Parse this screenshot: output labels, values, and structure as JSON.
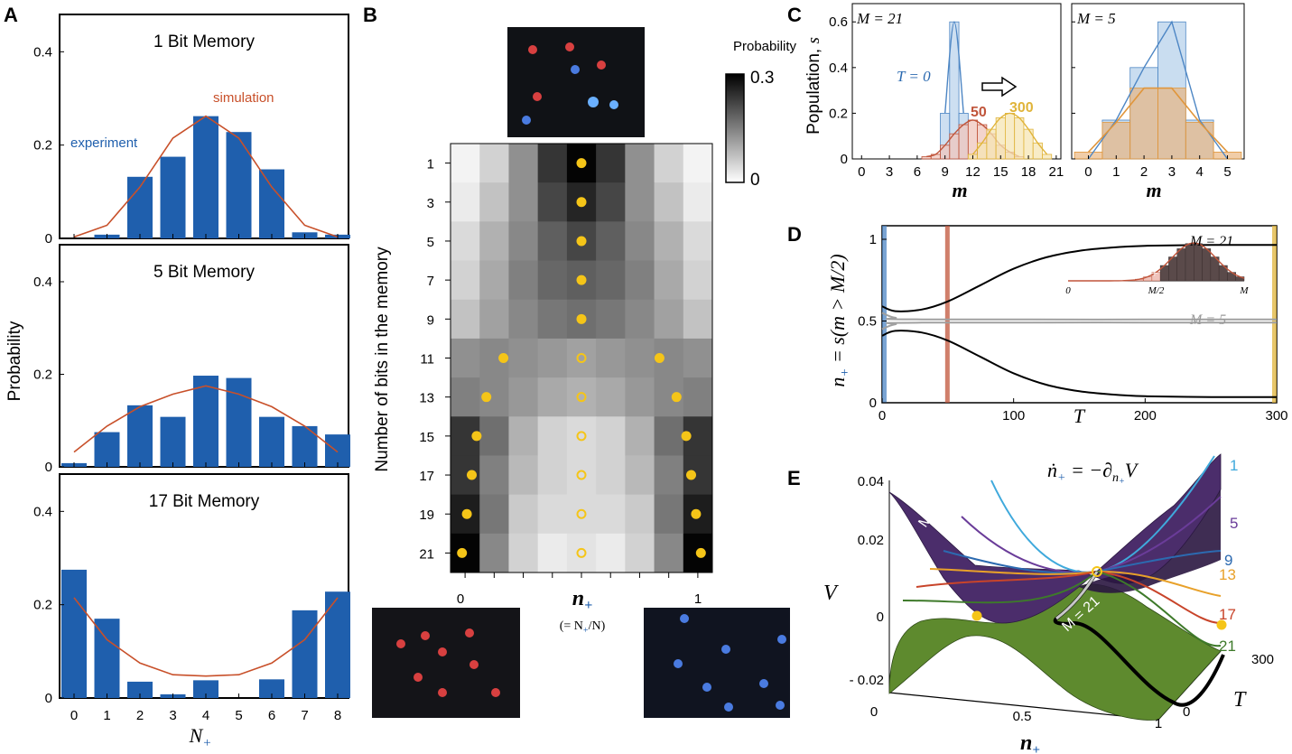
{
  "panel_labels": {
    "a": "A",
    "b": "B",
    "c": "C",
    "d": "D",
    "e": "E"
  },
  "colors": {
    "bar_blue": "#1f5fad",
    "sim_red": "#c8502a",
    "t0_blue": "#4d86c4",
    "t50_red": "#c0543a",
    "t300_yellow": "#e0b43a",
    "m5_orange": "#e0963c",
    "dot_yellow": "#f5c518",
    "surf_purple": "#4b2d6b",
    "surf_green": "#5e8a2e"
  },
  "panel_a": {
    "ylabel": "Probability",
    "xlabel": "N",
    "xlabel_sub": "+",
    "experiment_label": "experiment",
    "simulation_label": "simulation",
    "x_ticks": [
      "0",
      "1",
      "2",
      "3",
      "4",
      "5",
      "6",
      "7",
      "8"
    ],
    "y_ticks": [
      "0",
      "0.2",
      "0.4"
    ],
    "chart_data": [
      {
        "type": "bar",
        "title": "1 Bit Memory",
        "categories": [
          0,
          1,
          2,
          3,
          4,
          5,
          6,
          7,
          8
        ],
        "values": [
          0.0,
          0.008,
          0.132,
          0.175,
          0.262,
          0.228,
          0.148,
          0.013,
          0.008
        ],
        "simulation": [
          0.003,
          0.028,
          0.11,
          0.215,
          0.262,
          0.215,
          0.11,
          0.028,
          0.003
        ],
        "ylim": [
          0,
          0.48
        ]
      },
      {
        "type": "bar",
        "title": "5 Bit Memory",
        "categories": [
          0,
          1,
          2,
          3,
          4,
          5,
          6,
          7,
          8
        ],
        "values": [
          0.008,
          0.075,
          0.133,
          0.108,
          0.197,
          0.192,
          0.108,
          0.088,
          0.07
        ],
        "simulation": [
          0.032,
          0.088,
          0.13,
          0.157,
          0.175,
          0.157,
          0.13,
          0.088,
          0.032
        ],
        "ylim": [
          0,
          0.48
        ]
      },
      {
        "type": "bar",
        "title": "17 Bit Memory",
        "categories": [
          0,
          1,
          2,
          3,
          4,
          5,
          6,
          7,
          8
        ],
        "values": [
          0.275,
          0.17,
          0.035,
          0.008,
          0.038,
          0.0,
          0.04,
          0.188,
          0.228
        ],
        "simulation": [
          0.215,
          0.125,
          0.075,
          0.05,
          0.047,
          0.05,
          0.075,
          0.125,
          0.215
        ],
        "ylim": [
          0,
          0.48
        ]
      }
    ]
  },
  "panel_b": {
    "ylabel": "Number of bits in the memory",
    "colorbar_title": "Probability",
    "colorbar_max": "0.3",
    "colorbar_min": "0",
    "x_label_left": "0",
    "x_label_right": "1",
    "x_label_math": "n",
    "x_label_sub": "+",
    "x_label_note": "(= N",
    "x_label_note_sub": "+",
    "x_label_note_end": "/N)",
    "chart_data": {
      "type": "heatmap",
      "rows": [
        1,
        3,
        5,
        7,
        9,
        11,
        13,
        15,
        17,
        19,
        21
      ],
      "values": [
        [
          0.01,
          0.05,
          0.13,
          0.24,
          0.3,
          0.24,
          0.13,
          0.05,
          0.01
        ],
        [
          0.02,
          0.07,
          0.13,
          0.22,
          0.26,
          0.22,
          0.13,
          0.07,
          0.02
        ],
        [
          0.04,
          0.09,
          0.14,
          0.19,
          0.22,
          0.19,
          0.14,
          0.09,
          0.04
        ],
        [
          0.05,
          0.1,
          0.15,
          0.18,
          0.19,
          0.18,
          0.15,
          0.1,
          0.05
        ],
        [
          0.07,
          0.11,
          0.14,
          0.16,
          0.17,
          0.16,
          0.14,
          0.11,
          0.07
        ],
        [
          0.13,
          0.14,
          0.13,
          0.12,
          0.11,
          0.12,
          0.13,
          0.14,
          0.13
        ],
        [
          0.15,
          0.14,
          0.12,
          0.1,
          0.09,
          0.1,
          0.12,
          0.14,
          0.15
        ],
        [
          0.24,
          0.17,
          0.09,
          0.05,
          0.04,
          0.05,
          0.09,
          0.17,
          0.24
        ],
        [
          0.24,
          0.15,
          0.08,
          0.05,
          0.04,
          0.05,
          0.08,
          0.15,
          0.24
        ],
        [
          0.27,
          0.16,
          0.06,
          0.04,
          0.04,
          0.04,
          0.06,
          0.16,
          0.27
        ],
        [
          0.3,
          0.14,
          0.05,
          0.02,
          0.03,
          0.02,
          0.05,
          0.14,
          0.3
        ]
      ],
      "dots": [
        {
          "row": 1,
          "x": [
            0.5
          ],
          "filled": true
        },
        {
          "row": 3,
          "x": [
            0.5
          ],
          "filled": true
        },
        {
          "row": 5,
          "x": [
            0.5
          ],
          "filled": true
        },
        {
          "row": 7,
          "x": [
            0.5
          ],
          "filled": true
        },
        {
          "row": 9,
          "x": [
            0.5
          ],
          "filled": true
        },
        {
          "row": 11,
          "x": [
            0.18,
            0.82
          ],
          "filled": true
        },
        {
          "row": 11,
          "x": [
            0.5
          ],
          "filled": false
        },
        {
          "row": 13,
          "x": [
            0.11,
            0.89
          ],
          "filled": true
        },
        {
          "row": 13,
          "x": [
            0.5
          ],
          "filled": false
        },
        {
          "row": 15,
          "x": [
            0.07,
            0.93
          ],
          "filled": true
        },
        {
          "row": 15,
          "x": [
            0.5
          ],
          "filled": false
        },
        {
          "row": 17,
          "x": [
            0.05,
            0.95
          ],
          "filled": true
        },
        {
          "row": 17,
          "x": [
            0.5
          ],
          "filled": false
        },
        {
          "row": 19,
          "x": [
            0.03,
            0.97
          ],
          "filled": true
        },
        {
          "row": 19,
          "x": [
            0.5
          ],
          "filled": false
        },
        {
          "row": 21,
          "x": [
            0.01,
            0.99
          ],
          "filled": true
        },
        {
          "row": 21,
          "x": [
            0.5
          ],
          "filled": false
        }
      ],
      "colorbar_range": [
        0,
        0.3
      ]
    }
  },
  "panel_c": {
    "ylabel": "Population, ",
    "ylabel_math": "s",
    "xlabel": "m",
    "left_label": "M = 21",
    "right_label": "M = 5",
    "t0_label": "T = 0",
    "t50_label": "50",
    "t300_label": "300",
    "y_ticks": [
      "0",
      "0.2",
      "0.4",
      "0.6"
    ],
    "left_x_ticks": [
      "0",
      "3",
      "6",
      "9",
      "12",
      "15",
      "18",
      "21"
    ],
    "right_x_ticks": [
      "0",
      "1",
      "2",
      "3",
      "4",
      "5"
    ],
    "chart_data": [
      {
        "type": "bar",
        "title": "M = 21",
        "xlim": [
          -1,
          21.5
        ],
        "ylim": [
          0,
          0.68
        ],
        "series": [
          {
            "name": "T = 0",
            "x": [
              9,
              10,
              11
            ],
            "values": [
              0.2,
              0.6,
              0.2
            ]
          },
          {
            "name": "50",
            "x": [
              7,
              8,
              9,
              10,
              11,
              12,
              13,
              14,
              15,
              16,
              17
            ],
            "values": [
              0.01,
              0.02,
              0.06,
              0.11,
              0.15,
              0.17,
              0.15,
              0.11,
              0.06,
              0.03,
              0.01
            ]
          },
          {
            "name": "300",
            "x": [
              12,
              13,
              14,
              15,
              16,
              17,
              18,
              19,
              20
            ],
            "values": [
              0.02,
              0.07,
              0.13,
              0.18,
              0.2,
              0.18,
              0.13,
              0.07,
              0.02
            ]
          }
        ]
      },
      {
        "type": "bar",
        "title": "M = 5",
        "xlim": [
          -0.6,
          5.6
        ],
        "ylim": [
          0,
          0.68
        ],
        "series": [
          {
            "name": "T = 0",
            "x": [
              0,
              1,
              2,
              3,
              4,
              5
            ],
            "values": [
              0.0,
              0.17,
              0.4,
              0.6,
              0.17,
              0.0
            ]
          },
          {
            "name": "T = 300",
            "x": [
              0,
              1,
              2,
              3,
              4,
              5
            ],
            "values": [
              0.03,
              0.16,
              0.31,
              0.31,
              0.16,
              0.03
            ]
          }
        ]
      }
    ]
  },
  "panel_d": {
    "ylabel": "n",
    "ylabel_sub": "+",
    "ylabel_rest": " = s(m > M/2)",
    "xlabel": "T",
    "label_m21": "M = 21",
    "label_m5": "M = 5",
    "inset_label": "n",
    "inset_label_sub": "+",
    "inset_ticks": [
      "0",
      "M/2",
      "M"
    ],
    "x_ticks": [
      "0",
      "100",
      "200",
      "300"
    ],
    "y_ticks": [
      "0",
      "0.5",
      "1"
    ],
    "chart_data": {
      "type": "line",
      "xlim": [
        0,
        300
      ],
      "ylim": [
        0,
        1
      ],
      "series": [
        {
          "name": "M = 21 upper",
          "x": [
            0,
            10,
            30,
            50,
            75,
            100,
            125,
            150,
            175,
            200,
            250,
            300
          ],
          "values": [
            0.59,
            0.56,
            0.57,
            0.62,
            0.72,
            0.82,
            0.89,
            0.93,
            0.95,
            0.96,
            0.965,
            0.965
          ]
        },
        {
          "name": "M = 21 lower",
          "x": [
            0,
            10,
            30,
            50,
            75,
            100,
            125,
            150,
            175,
            200,
            250,
            300
          ],
          "values": [
            0.41,
            0.44,
            0.43,
            0.38,
            0.28,
            0.18,
            0.11,
            0.07,
            0.05,
            0.04,
            0.035,
            0.035
          ]
        },
        {
          "name": "M = 5",
          "x": [
            0,
            10,
            30,
            300
          ],
          "values": [
            0.55,
            0.52,
            0.51,
            0.51
          ]
        },
        {
          "name": "M = 5 lower",
          "x": [
            0,
            10,
            30,
            300
          ],
          "values": [
            0.45,
            0.48,
            0.49,
            0.49
          ]
        }
      ],
      "markers": [
        {
          "x": 0,
          "color": "#4d86c4"
        },
        {
          "x": 50,
          "color": "#c0543a"
        },
        {
          "x": 300,
          "color": "#e0b43a"
        }
      ]
    }
  },
  "panel_e": {
    "equation": "ṅ",
    "equation_sub": "+",
    "equation_rest": " = −∂",
    "equation_sub2": "n",
    "equation_sub3": "+",
    "equation_end": "V",
    "label_m5": "M = 5",
    "label_m21": "M = 21",
    "ylabel": "V",
    "xlabel": "n",
    "xlabel_sub": "+",
    "tlabel": "T",
    "y_ticks": [
      "0.04",
      "0.02",
      "0",
      "- 0.02"
    ],
    "x_ticks": [
      "0",
      "0.5",
      "1"
    ],
    "t_ticks": [
      "300",
      "0"
    ],
    "curve_labels": [
      "1",
      "5",
      "9",
      "13",
      "17",
      "21"
    ],
    "curve_colors": [
      "#3fa9dc",
      "#6a3c99",
      "#2c6ab0",
      "#e8a12a",
      "#c8442a",
      "#3e7a2a"
    ]
  }
}
